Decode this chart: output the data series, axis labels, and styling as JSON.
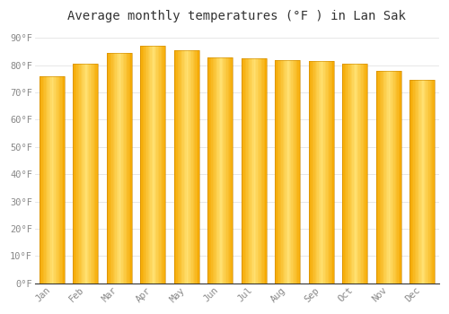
{
  "title": "Average monthly temperatures (°F ) in Lan Sak",
  "months": [
    "Jan",
    "Feb",
    "Mar",
    "Apr",
    "May",
    "Jun",
    "Jul",
    "Aug",
    "Sep",
    "Oct",
    "Nov",
    "Dec"
  ],
  "values": [
    76,
    80.5,
    84.5,
    87,
    85.5,
    83,
    82.5,
    82,
    81.5,
    80.5,
    78,
    74.5
  ],
  "bar_color_main": "#FFCC44",
  "bar_color_light": "#FFE080",
  "bar_color_dark": "#F5A800",
  "background_color": "#FFFFFF",
  "plot_bg_color": "#FFFFFF",
  "ytick_labels": [
    "0°F",
    "10°F",
    "20°F",
    "30°F",
    "40°F",
    "50°F",
    "60°F",
    "70°F",
    "80°F",
    "90°F"
  ],
  "ytick_values": [
    0,
    10,
    20,
    30,
    40,
    50,
    60,
    70,
    80,
    90
  ],
  "ylim": [
    0,
    93
  ],
  "title_fontsize": 10,
  "tick_fontsize": 7.5,
  "grid_color": "#DDDDDD",
  "font_family": "monospace",
  "bar_width": 0.75,
  "gradient_steps": 20
}
